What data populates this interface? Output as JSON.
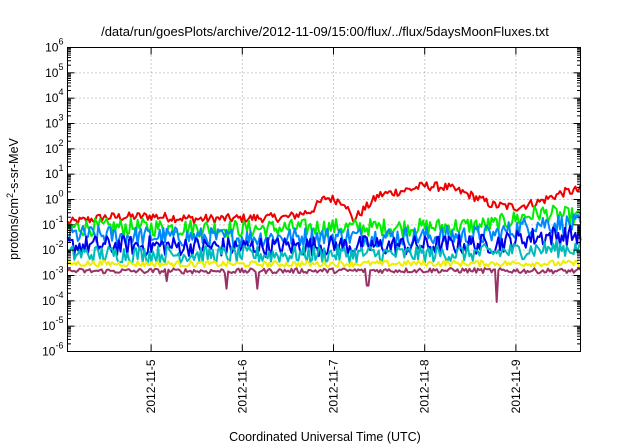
{
  "chart_data": {
    "type": "line",
    "title": "/data/run/goesPlots/archive/2012-11-09/15:00/flux/../flux/5daysMoonFluxes.txt",
    "xlabel": "Coordinated Universal Time (UTC)",
    "ylabel": {
      "base": "protons/cm",
      "sup": "2",
      "rest": "-s-sr-MeV"
    },
    "yscale": "log",
    "ylim": [
      1e-06,
      1000000.0
    ],
    "xlim": [
      "2012-11-04T02:00",
      "2012-11-09T17:00"
    ],
    "x_ticks": [
      "2012-11-5",
      "2012-11-6",
      "2012-11-7",
      "2012-11-8",
      "2012-11-9"
    ],
    "y_ticks": [
      {
        "base": "10",
        "exp": "-6"
      },
      {
        "base": "10",
        "exp": "-5"
      },
      {
        "base": "10",
        "exp": "-4"
      },
      {
        "base": "10",
        "exp": "-3"
      },
      {
        "base": "10",
        "exp": "-2"
      },
      {
        "base": "10",
        "exp": "-1"
      },
      {
        "base": "10",
        "exp": "0"
      },
      {
        "base": "10",
        "exp": "1"
      },
      {
        "base": "10",
        "exp": "2"
      },
      {
        "base": "10",
        "exp": "3"
      },
      {
        "base": "10",
        "exp": "4"
      },
      {
        "base": "10",
        "exp": "5"
      },
      {
        "base": "10",
        "exp": "6"
      }
    ],
    "grid": true,
    "series": [
      {
        "color": "#ee0000",
        "x": [
          "2012-11-04T02:00",
          "2012-11-04T12:00",
          "2012-11-05T00:00",
          "2012-11-05T12:00",
          "2012-11-06T00:00",
          "2012-11-06T12:00",
          "2012-11-06T18:00",
          "2012-11-06T22:00",
          "2012-11-07T03:00",
          "2012-11-07T05:00",
          "2012-11-07T12:00",
          "2012-11-07T20:00",
          "2012-11-08T00:00",
          "2012-11-08T06:00",
          "2012-11-08T12:00",
          "2012-11-08T18:00",
          "2012-11-09T00:00",
          "2012-11-09T06:00",
          "2012-11-09T12:00",
          "2012-11-09T17:00"
        ],
        "y": [
          0.12,
          0.2,
          0.22,
          0.17,
          0.18,
          0.2,
          0.35,
          1.2,
          0.8,
          0.15,
          1.5,
          2.5,
          3.5,
          3.0,
          1.5,
          0.6,
          0.5,
          0.8,
          1.8,
          2.5
        ],
        "noise": 0.18
      },
      {
        "color": "#00ee00",
        "x": [
          "2012-11-04T02:00",
          "2012-11-05T00:00",
          "2012-11-06T00:00",
          "2012-11-07T00:00",
          "2012-11-08T00:00",
          "2012-11-08T18:00",
          "2012-11-09T06:00",
          "2012-11-09T17:00"
        ],
        "y": [
          0.08,
          0.08,
          0.07,
          0.08,
          0.08,
          0.1,
          0.3,
          0.2
        ],
        "noise": 0.35
      },
      {
        "color": "#0088ff",
        "x": [
          "2012-11-04T02:00",
          "2012-11-05T00:00",
          "2012-11-06T00:00",
          "2012-11-07T00:00",
          "2012-11-08T00:00",
          "2012-11-08T18:00",
          "2012-11-09T06:00",
          "2012-11-09T17:00"
        ],
        "y": [
          0.04,
          0.035,
          0.03,
          0.035,
          0.035,
          0.04,
          0.12,
          0.1
        ],
        "noise": 0.4
      },
      {
        "color": "#0000ee",
        "x": [
          "2012-11-04T02:00",
          "2012-11-05T00:00",
          "2012-11-06T00:00",
          "2012-11-07T00:00",
          "2012-11-08T00:00",
          "2012-11-08T18:00",
          "2012-11-09T06:00",
          "2012-11-09T17:00"
        ],
        "y": [
          0.015,
          0.015,
          0.013,
          0.015,
          0.015,
          0.018,
          0.035,
          0.04
        ],
        "noise": 0.4
      },
      {
        "color": "#00bbbb",
        "x": [
          "2012-11-04T02:00",
          "2012-11-05T00:00",
          "2012-11-06T00:00",
          "2012-11-07T00:00",
          "2012-11-08T00:00",
          "2012-11-08T18:00",
          "2012-11-09T06:00",
          "2012-11-09T17:00"
        ],
        "y": [
          0.007,
          0.007,
          0.0065,
          0.007,
          0.007,
          0.008,
          0.011,
          0.012
        ],
        "noise": 0.35
      },
      {
        "color": "#eeee00",
        "x": [
          "2012-11-04T02:00",
          "2012-11-06T00:00",
          "2012-11-08T00:00",
          "2012-11-09T17:00"
        ],
        "y": [
          0.003,
          0.0028,
          0.003,
          0.003
        ],
        "noise": 0.12
      },
      {
        "color": "#993366",
        "x": [
          "2012-11-04T02:00",
          "2012-11-06T00:00",
          "2012-11-08T00:00",
          "2012-11-09T17:00"
        ],
        "y": [
          0.0015,
          0.0015,
          0.0016,
          0.0015
        ],
        "noise": 0.1,
        "dips": [
          {
            "x": "2012-11-05T04:00",
            "y": 0.0006
          },
          {
            "x": "2012-11-05T20:00",
            "y": 0.0003
          },
          {
            "x": "2012-11-06T04:00",
            "y": 0.0003
          },
          {
            "x": "2012-11-07T09:00",
            "y": 0.0004
          },
          {
            "x": "2012-11-08T19:00",
            "y": 9e-05
          }
        ]
      }
    ]
  }
}
